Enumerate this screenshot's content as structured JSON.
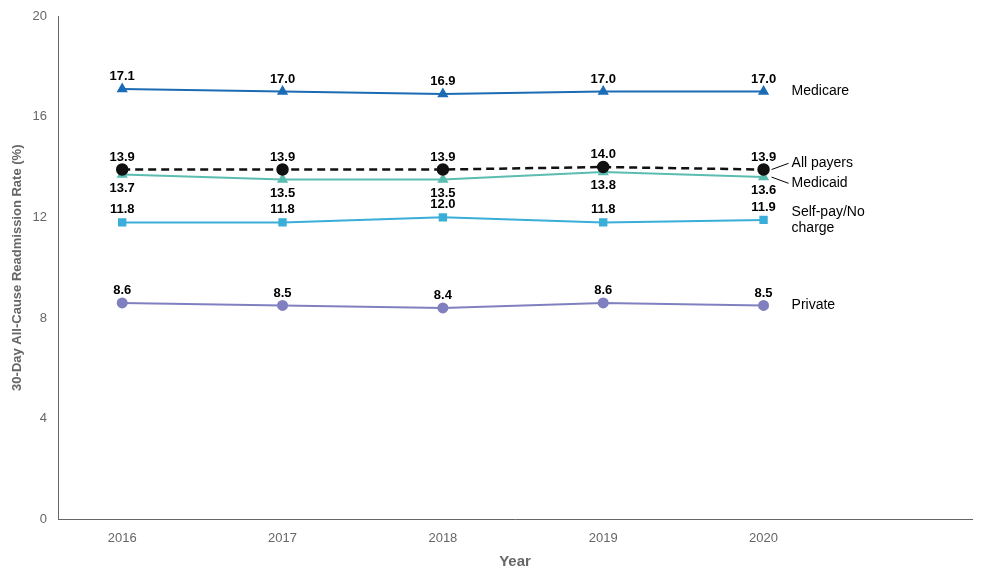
{
  "chart_data": {
    "type": "line",
    "xlabel": "Year",
    "ylabel": "30-Day All-Cause Readmission Rate (%)",
    "x": [
      2016,
      2017,
      2018,
      2019,
      2020
    ],
    "xlim": [
      2015.6,
      2021.3
    ],
    "xticks": [
      2016,
      2017,
      2018,
      2019,
      2020
    ],
    "ylim": [
      0,
      20
    ],
    "yticks": [
      0,
      4,
      8,
      12,
      16,
      20
    ],
    "grid": false,
    "data_labels": true,
    "series": [
      {
        "name": "Medicare",
        "color": "#1B6CB5",
        "marker": "triangle",
        "line_style": "solid",
        "values": [
          17.1,
          17.0,
          16.9,
          17.0,
          17.0
        ],
        "value_labels": [
          "17.1",
          "17.0",
          "16.9",
          "17.0",
          "17.0"
        ]
      },
      {
        "name": "All payers",
        "color": "#111111",
        "marker": "circle",
        "line_style": "dashed",
        "values": [
          13.9,
          13.9,
          13.9,
          14.0,
          13.9
        ],
        "value_labels": [
          "13.9",
          "13.9",
          "13.9",
          "14.0",
          "13.9"
        ]
      },
      {
        "name": "Medicaid",
        "color": "#5BBCB0",
        "marker": "triangle",
        "line_style": "solid",
        "values": [
          13.7,
          13.5,
          13.5,
          13.8,
          13.6
        ],
        "value_labels": [
          "13.7",
          "13.5",
          "13.5",
          "13.8",
          "13.6"
        ]
      },
      {
        "name": "Self-pay/No\ncharge",
        "color": "#3AAED8",
        "marker": "square",
        "line_style": "solid",
        "values": [
          11.8,
          11.8,
          12.0,
          11.8,
          11.9
        ],
        "value_labels": [
          "11.8",
          "11.8",
          "12.0",
          "11.8",
          "11.9"
        ]
      },
      {
        "name": "Private",
        "color": "#8080C0",
        "marker": "circle",
        "line_style": "solid",
        "values": [
          8.6,
          8.5,
          8.4,
          8.6,
          8.5
        ],
        "value_labels": [
          "8.6",
          "8.5",
          "8.4",
          "8.6",
          "8.5"
        ]
      }
    ]
  }
}
